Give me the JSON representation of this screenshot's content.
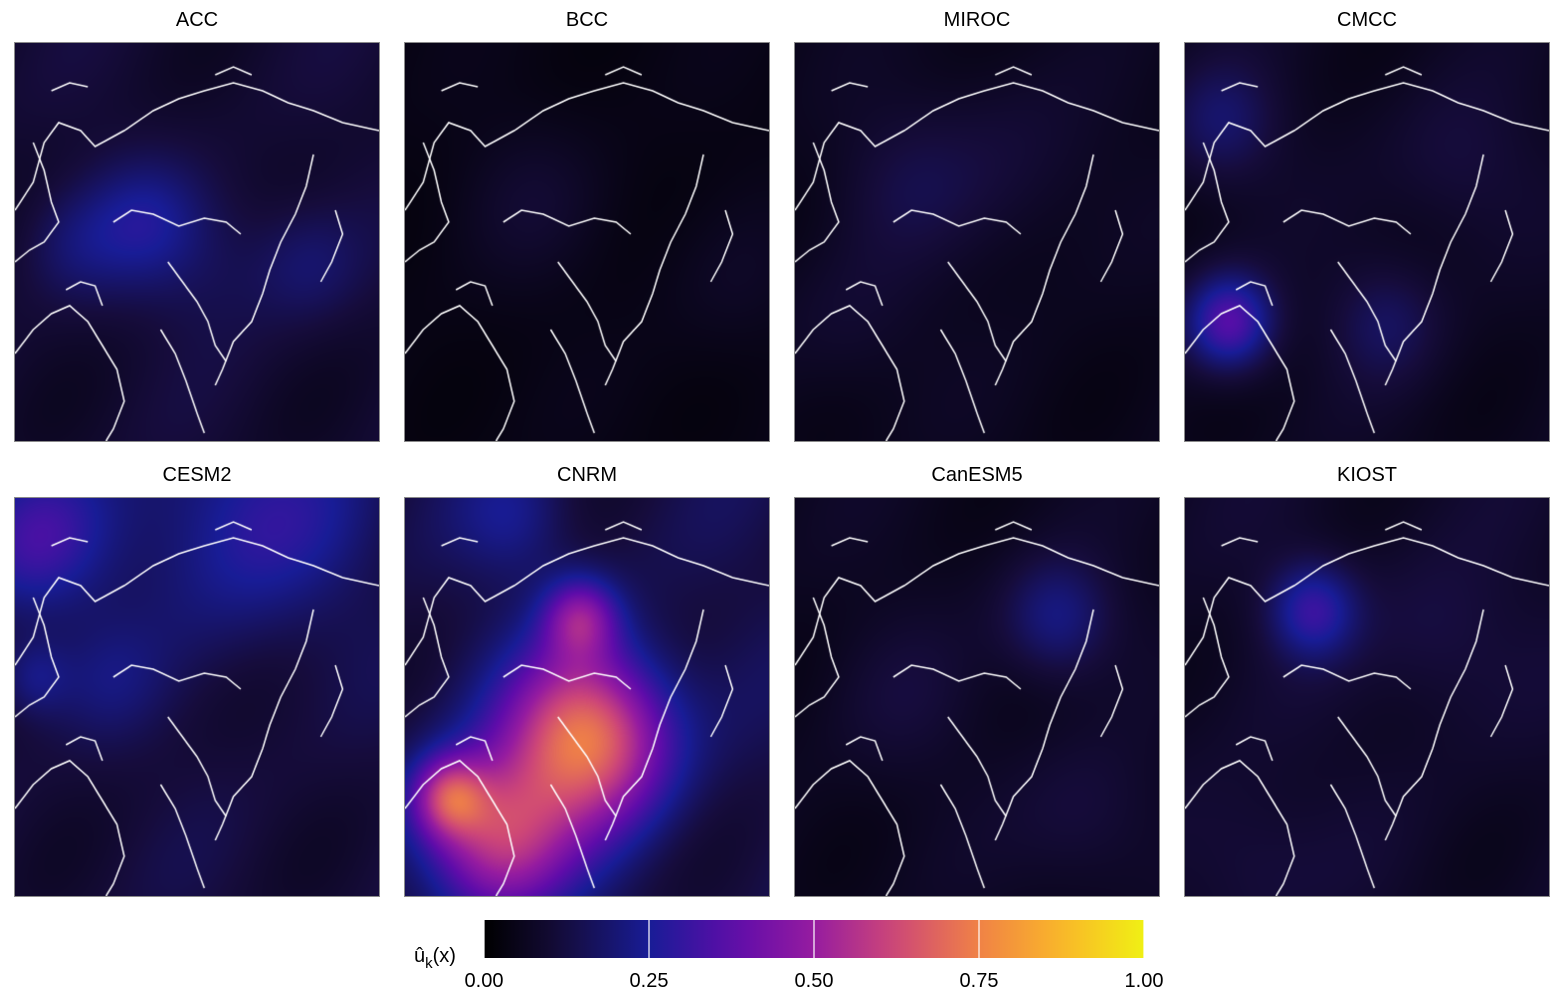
{
  "chart_data": {
    "type": "heatmap",
    "panels": [
      {
        "title": "ACC",
        "field": {
          "base": 0.12,
          "blobs": [
            [
              0.35,
              0.45,
              0.16,
              0.12
            ],
            [
              0.55,
              0.55,
              0.2,
              0.06
            ],
            [
              0.15,
              0.5,
              0.15,
              0.08
            ],
            [
              0.8,
              0.55,
              0.15,
              0.08
            ]
          ]
        }
      },
      {
        "title": "BCC",
        "field": {
          "base": 0.05,
          "blobs": [
            [
              0.35,
              0.4,
              0.2,
              0.05
            ],
            [
              0.9,
              0.6,
              0.2,
              0.03
            ]
          ]
        }
      },
      {
        "title": "MIROC",
        "field": {
          "base": 0.07,
          "blobs": [
            [
              0.3,
              0.35,
              0.2,
              0.06
            ],
            [
              0.6,
              0.3,
              0.25,
              0.05
            ],
            [
              0.15,
              0.7,
              0.2,
              0.04
            ]
          ]
        }
      },
      {
        "title": "CMCC",
        "field": {
          "base": 0.08,
          "blobs": [
            [
              0.12,
              0.7,
              0.12,
              0.3
            ],
            [
              0.1,
              0.2,
              0.15,
              0.12
            ],
            [
              0.55,
              0.7,
              0.15,
              0.1
            ],
            [
              0.75,
              0.3,
              0.2,
              0.06
            ]
          ]
        }
      },
      {
        "title": "CESM2",
        "field": {
          "base": 0.14,
          "blobs": [
            [
              0.05,
              0.1,
              0.2,
              0.2
            ],
            [
              0.65,
              0.05,
              0.3,
              0.18
            ],
            [
              0.25,
              0.45,
              0.15,
              0.07
            ],
            [
              0.05,
              0.45,
              0.1,
              0.12
            ]
          ]
        }
      },
      {
        "title": "CNRM",
        "field": {
          "base": 0.16,
          "blobs": [
            [
              0.5,
              0.6,
              0.22,
              0.6
            ],
            [
              0.48,
              0.3,
              0.1,
              0.3
            ],
            [
              0.25,
              0.85,
              0.2,
              0.45
            ],
            [
              0.12,
              0.75,
              0.1,
              0.35
            ],
            [
              0.3,
              0.05,
              0.15,
              0.1
            ]
          ]
        }
      },
      {
        "title": "CanESM5",
        "field": {
          "base": 0.08,
          "blobs": [
            [
              0.72,
              0.3,
              0.15,
              0.16
            ],
            [
              0.8,
              0.8,
              0.2,
              0.06
            ],
            [
              0.3,
              0.5,
              0.2,
              0.04
            ]
          ]
        }
      },
      {
        "title": "KIOST",
        "field": {
          "base": 0.1,
          "blobs": [
            [
              0.35,
              0.28,
              0.12,
              0.22
            ],
            [
              0.7,
              0.35,
              0.2,
              0.06
            ],
            [
              0.15,
              0.9,
              0.2,
              0.05
            ]
          ]
        }
      }
    ],
    "colorbar": {
      "label": "û",
      "label_sub": "k",
      "label_suffix": "(x)",
      "ticks": [
        0.0,
        0.25,
        0.5,
        0.75,
        1.0
      ],
      "tick_labels": [
        "0.00",
        "0.25",
        "0.50",
        "0.75",
        "1.00"
      ],
      "range": [
        0,
        1
      ],
      "colormap": "plasma-black-start",
      "position": "bottom"
    }
  }
}
